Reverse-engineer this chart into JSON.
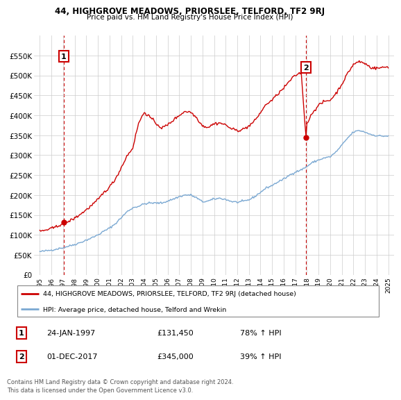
{
  "title": "44, HIGHGROVE MEADOWS, PRIORSLEE, TELFORD, TF2 9RJ",
  "subtitle": "Price paid vs. HM Land Registry's House Price Index (HPI)",
  "legend_line1": "44, HIGHGROVE MEADOWS, PRIORSLEE, TELFORD, TF2 9RJ (detached house)",
  "legend_line2": "HPI: Average price, detached house, Telford and Wrekin",
  "footnote": "Contains HM Land Registry data © Crown copyright and database right 2024.\nThis data is licensed under the Open Government Licence v3.0.",
  "point1_label": "1",
  "point1_date": "24-JAN-1997",
  "point1_price": "£131,450",
  "point1_hpi": "78% ↑ HPI",
  "point2_label": "2",
  "point2_date": "01-DEC-2017",
  "point2_price": "£345,000",
  "point2_hpi": "39% ↑ HPI",
  "point1_x": 1997.07,
  "point1_y": 131450,
  "point2_x": 2017.92,
  "point2_y": 345000,
  "ylim": [
    0,
    600000
  ],
  "xlim": [
    1994.5,
    2025.5
  ],
  "yticks": [
    0,
    50000,
    100000,
    150000,
    200000,
    250000,
    300000,
    350000,
    400000,
    450000,
    500000,
    550000
  ],
  "ytick_labels": [
    "£0",
    "£50K",
    "£100K",
    "£150K",
    "£200K",
    "£250K",
    "£300K",
    "£350K",
    "£400K",
    "£450K",
    "£500K",
    "£550K"
  ],
  "xticks": [
    1995,
    1996,
    1997,
    1998,
    1999,
    2000,
    2001,
    2002,
    2003,
    2004,
    2005,
    2006,
    2007,
    2008,
    2009,
    2010,
    2011,
    2012,
    2013,
    2014,
    2015,
    2016,
    2017,
    2018,
    2019,
    2020,
    2021,
    2022,
    2023,
    2024,
    2025
  ],
  "hpi_color": "#7aa8d2",
  "price_color": "#cc0000",
  "grid_color": "#cccccc",
  "vline_color": "#cc0000",
  "background_color": "#ffffff",
  "hpi_control": [
    [
      1995.0,
      58000
    ],
    [
      1995.5,
      60000
    ],
    [
      1996.0,
      62000
    ],
    [
      1996.5,
      65000
    ],
    [
      1997.0,
      68000
    ],
    [
      1997.5,
      72000
    ],
    [
      1998.0,
      76000
    ],
    [
      1998.5,
      81000
    ],
    [
      1999.0,
      87000
    ],
    [
      1999.5,
      93000
    ],
    [
      2000.0,
      100000
    ],
    [
      2000.5,
      109000
    ],
    [
      2001.0,
      117000
    ],
    [
      2001.5,
      128000
    ],
    [
      2002.0,
      143000
    ],
    [
      2002.5,
      158000
    ],
    [
      2003.0,
      168000
    ],
    [
      2003.5,
      172000
    ],
    [
      2004.0,
      178000
    ],
    [
      2004.5,
      180000
    ],
    [
      2005.0,
      180000
    ],
    [
      2005.5,
      180000
    ],
    [
      2006.0,
      185000
    ],
    [
      2006.5,
      190000
    ],
    [
      2007.0,
      196000
    ],
    [
      2007.5,
      200000
    ],
    [
      2008.0,
      200000
    ],
    [
      2008.5,
      193000
    ],
    [
      2009.0,
      183000
    ],
    [
      2009.5,
      185000
    ],
    [
      2010.0,
      190000
    ],
    [
      2010.5,
      192000
    ],
    [
      2011.0,
      189000
    ],
    [
      2011.5,
      184000
    ],
    [
      2012.0,
      182000
    ],
    [
      2012.5,
      184000
    ],
    [
      2013.0,
      188000
    ],
    [
      2013.5,
      196000
    ],
    [
      2014.0,
      207000
    ],
    [
      2014.5,
      218000
    ],
    [
      2015.0,
      224000
    ],
    [
      2015.5,
      233000
    ],
    [
      2016.0,
      240000
    ],
    [
      2016.5,
      250000
    ],
    [
      2017.0,
      258000
    ],
    [
      2017.5,
      263000
    ],
    [
      2018.0,
      272000
    ],
    [
      2018.5,
      282000
    ],
    [
      2019.0,
      288000
    ],
    [
      2019.5,
      293000
    ],
    [
      2020.0,
      296000
    ],
    [
      2020.5,
      308000
    ],
    [
      2021.0,
      325000
    ],
    [
      2021.5,
      343000
    ],
    [
      2022.0,
      358000
    ],
    [
      2022.5,
      362000
    ],
    [
      2023.0,
      358000
    ],
    [
      2023.5,
      352000
    ],
    [
      2024.0,
      349000
    ],
    [
      2024.5,
      348000
    ],
    [
      2025.0,
      348000
    ]
  ],
  "price_control": [
    [
      1995.0,
      109000
    ],
    [
      1995.5,
      112000
    ],
    [
      1996.0,
      116000
    ],
    [
      1996.5,
      121000
    ],
    [
      1997.07,
      131450
    ],
    [
      1997.5,
      134000
    ],
    [
      1998.0,
      142000
    ],
    [
      1998.5,
      152000
    ],
    [
      1999.0,
      163000
    ],
    [
      1999.5,
      175000
    ],
    [
      2000.0,
      188000
    ],
    [
      2000.5,
      206000
    ],
    [
      2001.0,
      220000
    ],
    [
      2001.5,
      240000
    ],
    [
      2002.0,
      268000
    ],
    [
      2002.5,
      298000
    ],
    [
      2003.0,
      318000
    ],
    [
      2003.5,
      380000
    ],
    [
      2004.0,
      408000
    ],
    [
      2004.5,
      395000
    ],
    [
      2005.0,
      380000
    ],
    [
      2005.5,
      368000
    ],
    [
      2006.0,
      376000
    ],
    [
      2006.5,
      388000
    ],
    [
      2007.0,
      400000
    ],
    [
      2007.5,
      410000
    ],
    [
      2008.0,
      408000
    ],
    [
      2008.5,
      394000
    ],
    [
      2009.0,
      374000
    ],
    [
      2009.5,
      370000
    ],
    [
      2010.0,
      379000
    ],
    [
      2010.5,
      381000
    ],
    [
      2011.0,
      376000
    ],
    [
      2011.5,
      366000
    ],
    [
      2012.0,
      362000
    ],
    [
      2012.5,
      365000
    ],
    [
      2013.0,
      373000
    ],
    [
      2013.5,
      386000
    ],
    [
      2014.0,
      407000
    ],
    [
      2014.5,
      428000
    ],
    [
      2015.0,
      438000
    ],
    [
      2015.5,
      454000
    ],
    [
      2016.0,
      468000
    ],
    [
      2016.5,
      486000
    ],
    [
      2017.0,
      500000
    ],
    [
      2017.5,
      508000
    ],
    [
      2017.92,
      345000
    ],
    [
      2018.0,
      380000
    ],
    [
      2018.5,
      408000
    ],
    [
      2019.0,
      425000
    ],
    [
      2019.5,
      435000
    ],
    [
      2020.0,
      438000
    ],
    [
      2020.5,
      455000
    ],
    [
      2021.0,
      478000
    ],
    [
      2021.5,
      505000
    ],
    [
      2022.0,
      528000
    ],
    [
      2022.5,
      535000
    ],
    [
      2023.0,
      530000
    ],
    [
      2023.5,
      520000
    ],
    [
      2024.0,
      518000
    ],
    [
      2024.5,
      520000
    ],
    [
      2025.0,
      522000
    ]
  ]
}
